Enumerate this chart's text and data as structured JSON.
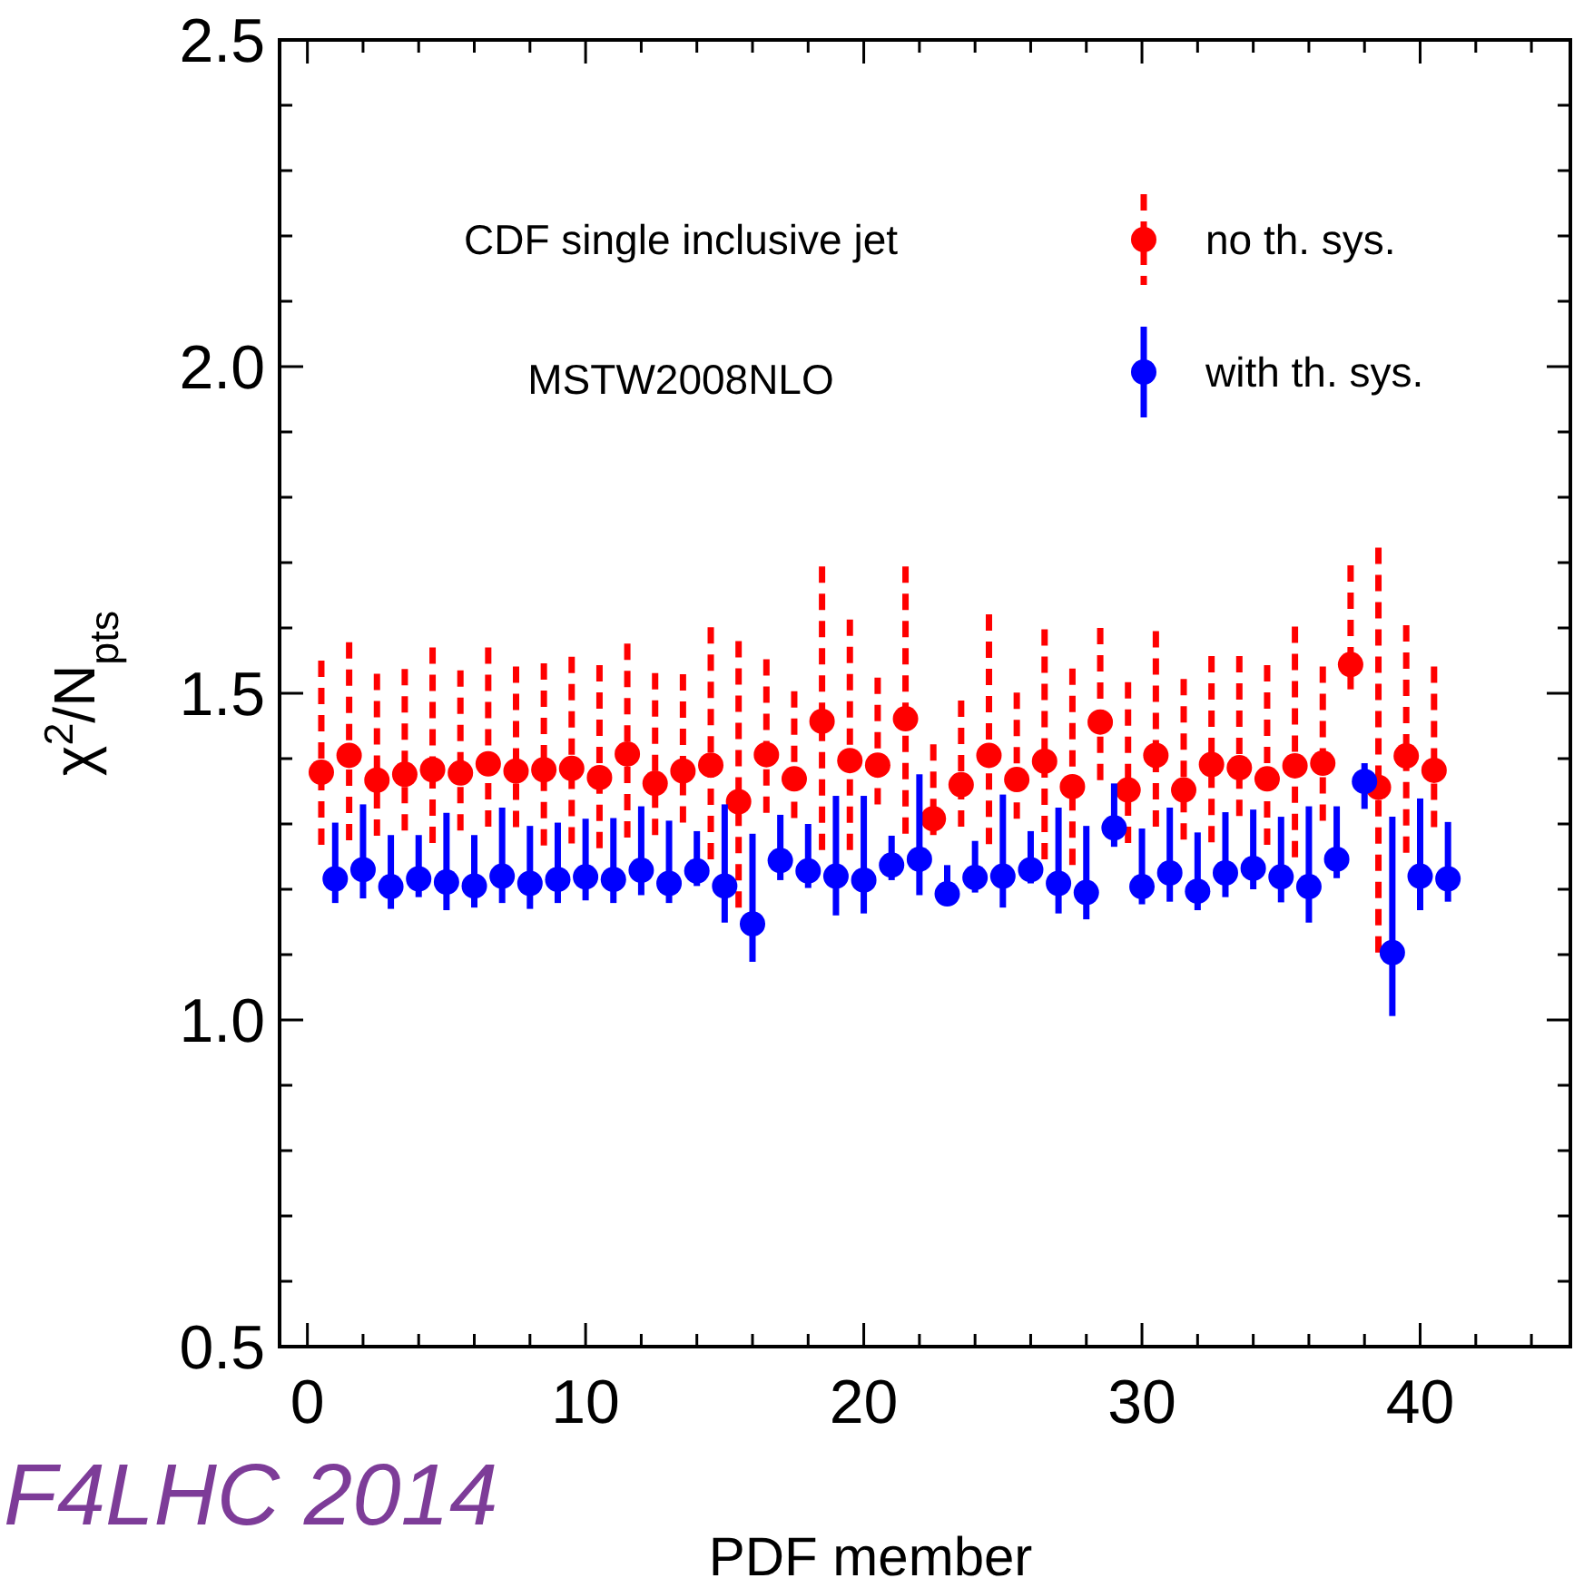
{
  "chart_data": {
    "type": "scatter",
    "xlabel": "PDF member",
    "ylabel": "χ$^{2}$/N$_{pts}$",
    "xlim": [
      -1,
      45.4
    ],
    "ylim": [
      0.5,
      2.5
    ],
    "xticks": [
      0,
      {
        "value": 2,
        "label": null
      },
      {
        "value": 4,
        "label": null
      },
      {
        "value": 6,
        "label": null
      },
      {
        "value": 8,
        "label": null
      },
      10,
      {
        "value": 12,
        "label": null
      },
      {
        "value": 14,
        "label": null
      },
      {
        "value": 16,
        "label": null
      },
      {
        "value": 18,
        "label": null
      },
      20,
      {
        "value": 22,
        "label": null
      },
      {
        "value": 24,
        "label": null
      },
      {
        "value": 26,
        "label": null
      },
      {
        "value": 28,
        "label": null
      },
      30,
      {
        "value": 32,
        "label": null
      },
      {
        "value": 34,
        "label": null
      },
      {
        "value": 36,
        "label": null
      },
      {
        "value": 38,
        "label": null
      },
      40,
      {
        "value": 42,
        "label": null
      },
      {
        "value": 44,
        "label": null
      }
    ],
    "yticks": [
      {
        "value": 0.5,
        "label": "0.5"
      },
      {
        "value": 0.6,
        "label": null
      },
      {
        "value": 0.7,
        "label": null
      },
      {
        "value": 0.8,
        "label": null
      },
      {
        "value": 0.9,
        "label": null
      },
      {
        "value": 1.0,
        "label": "1.0"
      },
      {
        "value": 1.1,
        "label": null
      },
      {
        "value": 1.2,
        "label": null
      },
      {
        "value": 1.3,
        "label": null
      },
      {
        "value": 1.4,
        "label": null
      },
      {
        "value": 1.5,
        "label": "1.5"
      },
      {
        "value": 1.6,
        "label": null
      },
      {
        "value": 1.7,
        "label": null
      },
      {
        "value": 1.8,
        "label": null
      },
      {
        "value": 1.9,
        "label": null
      },
      {
        "value": 2.0,
        "label": "2.0"
      },
      {
        "value": 2.1,
        "label": null
      },
      {
        "value": 2.2,
        "label": null
      },
      {
        "value": 2.3,
        "label": null
      },
      {
        "value": 2.4,
        "label": null
      },
      {
        "value": 2.5,
        "label": "2.5"
      }
    ],
    "grid": false,
    "legend": "top right",
    "marker": "circle",
    "annotations": [
      "CDF single inclusive jet",
      "MSTW2008NLO",
      "F4LHC 2014"
    ],
    "series": [
      {
        "name": "no th. sys.",
        "color": "#ff0000",
        "line_style": "dashed",
        "x": [
          0.5,
          1.5,
          2.5,
          3.5,
          4.5,
          5.5,
          6.5,
          7.5,
          8.5,
          9.5,
          10.5,
          11.5,
          12.5,
          13.5,
          14.5,
          15.5,
          16.5,
          17.5,
          18.5,
          19.5,
          20.5,
          21.5,
          22.5,
          23.5,
          24.5,
          25.5,
          26.5,
          27.5,
          28.5,
          29.5,
          30.5,
          31.5,
          32.5,
          33.5,
          34.5,
          35.5,
          36.5,
          37.5,
          38.5,
          39.5,
          40.5
        ],
        "values": [
          1.379,
          1.405,
          1.367,
          1.376,
          1.383,
          1.378,
          1.392,
          1.381,
          1.383,
          1.385,
          1.371,
          1.407,
          1.362,
          1.381,
          1.39,
          1.334,
          1.406,
          1.369,
          1.457,
          1.397,
          1.39,
          1.461,
          1.308,
          1.36,
          1.405,
          1.368,
          1.396,
          1.357,
          1.456,
          1.352,
          1.405,
          1.352,
          1.391,
          1.386,
          1.369,
          1.389,
          1.393,
          1.544,
          1.356,
          1.404,
          1.382
        ],
        "errors": [
          [
            1.268,
            1.55
          ],
          [
            1.275,
            1.578
          ],
          [
            1.282,
            1.53
          ],
          [
            1.29,
            1.537
          ],
          [
            1.271,
            1.57
          ],
          [
            1.29,
            1.535
          ],
          [
            1.296,
            1.57
          ],
          [
            1.295,
            1.541
          ],
          [
            1.267,
            1.546
          ],
          [
            1.27,
            1.556
          ],
          [
            1.263,
            1.543
          ],
          [
            1.279,
            1.576
          ],
          [
            1.283,
            1.531
          ],
          [
            1.302,
            1.529
          ],
          [
            1.246,
            1.601
          ],
          [
            1.172,
            1.58
          ],
          [
            1.317,
            1.552
          ],
          [
            1.309,
            1.503
          ],
          [
            1.26,
            1.694
          ],
          [
            1.26,
            1.613
          ],
          [
            1.33,
            1.524
          ],
          [
            1.285,
            1.694
          ],
          [
            1.283,
            1.422
          ],
          [
            1.296,
            1.489
          ],
          [
            1.269,
            1.621
          ],
          [
            1.308,
            1.501
          ],
          [
            1.246,
            1.598
          ],
          [
            1.237,
            1.538
          ],
          [
            1.367,
            1.6
          ],
          [
            1.271,
            1.517
          ],
          [
            1.296,
            1.595
          ],
          [
            1.276,
            1.522
          ],
          [
            1.272,
            1.557
          ],
          [
            1.312,
            1.557
          ],
          [
            1.268,
            1.543
          ],
          [
            1.249,
            1.602
          ],
          [
            1.305,
            1.541
          ],
          [
            1.506,
            1.696
          ],
          [
            1.103,
            1.723
          ],
          [
            1.256,
            1.604
          ],
          [
            1.295,
            1.541
          ]
        ]
      },
      {
        "name": "with th. sys.",
        "color": "#0000ff",
        "line_style": "solid",
        "x": [
          1,
          2,
          3,
          4,
          5,
          6,
          7,
          8,
          9,
          10,
          11,
          12,
          13,
          14,
          15,
          16,
          17,
          18,
          19,
          20,
          21,
          22,
          23,
          24,
          25,
          26,
          27,
          28,
          29,
          30,
          31,
          32,
          33,
          34,
          35,
          36,
          37,
          38,
          39,
          40,
          41
        ],
        "values": [
          1.216,
          1.23,
          1.204,
          1.216,
          1.211,
          1.205,
          1.22,
          1.209,
          1.215,
          1.219,
          1.215,
          1.229,
          1.209,
          1.228,
          1.205,
          1.147,
          1.244,
          1.228,
          1.22,
          1.214,
          1.237,
          1.246,
          1.193,
          1.218,
          1.22,
          1.23,
          1.209,
          1.195,
          1.294,
          1.204,
          1.225,
          1.197,
          1.225,
          1.232,
          1.219,
          1.204,
          1.246,
          1.365,
          1.103,
          1.22,
          1.216
        ],
        "errors": [
          [
            1.179,
            1.302
          ],
          [
            1.186,
            1.33
          ],
          [
            1.17,
            1.283
          ],
          [
            1.188,
            1.283
          ],
          [
            1.168,
            1.317
          ],
          [
            1.172,
            1.283
          ],
          [
            1.179,
            1.325
          ],
          [
            1.17,
            1.297
          ],
          [
            1.179,
            1.302
          ],
          [
            1.183,
            1.308
          ],
          [
            1.179,
            1.309
          ],
          [
            1.191,
            1.327
          ],
          [
            1.179,
            1.305
          ],
          [
            1.205,
            1.289
          ],
          [
            1.149,
            1.33
          ],
          [
            1.089,
            1.285
          ],
          [
            1.214,
            1.314
          ],
          [
            1.202,
            1.3
          ],
          [
            1.16,
            1.343
          ],
          [
            1.163,
            1.343
          ],
          [
            1.214,
            1.282
          ],
          [
            1.191,
            1.376
          ],
          [
            1.181,
            1.237
          ],
          [
            1.195,
            1.274
          ],
          [
            1.172,
            1.345
          ],
          [
            1.209,
            1.289
          ],
          [
            1.163,
            1.325
          ],
          [
            1.154,
            1.297
          ],
          [
            1.265,
            1.362
          ],
          [
            1.177,
            1.293
          ],
          [
            1.181,
            1.325
          ],
          [
            1.168,
            1.287
          ],
          [
            1.188,
            1.318
          ],
          [
            1.2,
            1.322
          ],
          [
            1.18,
            1.311
          ],
          [
            1.149,
            1.327
          ],
          [
            1.217,
            1.327
          ],
          [
            1.323,
            1.393
          ],
          [
            1.006,
            1.311
          ],
          [
            1.168,
            1.339
          ],
          [
            1.181,
            1.303
          ]
        ]
      }
    ]
  }
}
